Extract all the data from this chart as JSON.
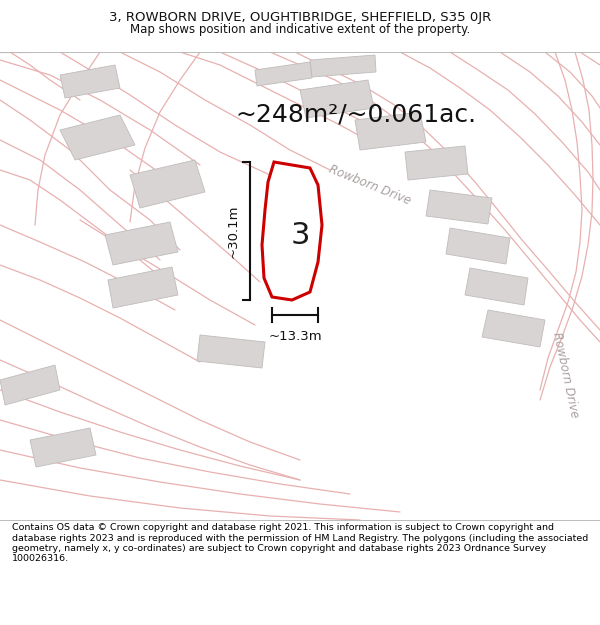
{
  "title_line1": "3, ROWBORN DRIVE, OUGHTIBRIDGE, SHEFFIELD, S35 0JR",
  "title_line2": "Map shows position and indicative extent of the property.",
  "area_text": "~248m²/~0.061ac.",
  "plot_number": "3",
  "dim_vertical": "~30.1m",
  "dim_horizontal": "~13.3m",
  "road_label1": "Rowborn Drive",
  "road_label2": "Rowborn Drive",
  "footer_text": "Contains OS data © Crown copyright and database right 2021. This information is subject to Crown copyright and database rights 2023 and is reproduced with the permission of HM Land Registry. The polygons (including the associated geometry, namely x, y co-ordinates) are subject to Crown copyright and database rights 2023 Ordnance Survey 100026316.",
  "bg_color": "#f8f5f5",
  "plot_color": "#cc0000",
  "plot_fill": "#ffffff",
  "building_color": "#d8d4d4",
  "building_edge": "#c0bcbc",
  "line_color_faint": "#e8b0b0",
  "line_color_medium": "#d09090",
  "road_label_color": "#aaa0a0",
  "title_bg": "#ffffff",
  "footer_bg": "#ffffff",
  "dim_line_color": "#111111",
  "text_color": "#111111"
}
